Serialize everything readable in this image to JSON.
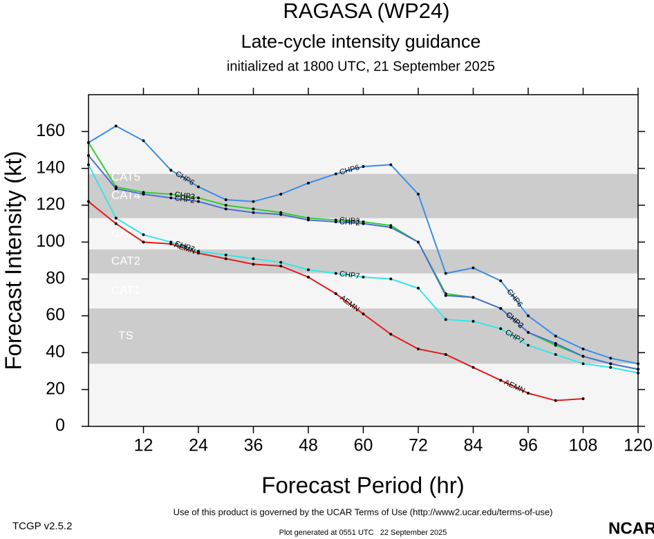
{
  "chart_data": {
    "type": "line",
    "title": "RAGASA (WP24)",
    "subtitle": "Late-cycle intensity guidance",
    "init_text": "initialized at 1800 UTC, 21 September 2025",
    "xlabel": "Forecast Period (hr)",
    "ylabel": "Forecast Intensity (kt)",
    "xlim": [
      0,
      120
    ],
    "ylim": [
      0,
      180
    ],
    "xticks": [
      12,
      24,
      36,
      48,
      60,
      72,
      84,
      96,
      108,
      120
    ],
    "yticks": [
      0,
      20,
      40,
      60,
      80,
      100,
      120,
      140,
      160
    ],
    "bands": [
      {
        "label": "TS",
        "from": 34,
        "to": 64,
        "shade": true
      },
      {
        "label": "CAT1",
        "from": 64,
        "to": 83,
        "shade": false
      },
      {
        "label": "CAT2",
        "from": 83,
        "to": 96,
        "shade": true
      },
      {
        "label": "CAT3",
        "from": 96,
        "to": 113,
        "shade": false
      },
      {
        "label": "CAT4",
        "from": 113,
        "to": 137,
        "shade": true
      },
      {
        "label": "CAT5",
        "from": 137,
        "to": 180,
        "shade": false
      }
    ],
    "x": [
      0,
      6,
      12,
      18,
      24,
      30,
      36,
      42,
      48,
      54,
      60,
      66,
      72,
      78,
      84,
      90,
      96,
      102,
      108,
      114,
      120
    ],
    "series": [
      {
        "name": "CHP6",
        "color": "#3a8ee6",
        "values": [
          154,
          163,
          155,
          139,
          130,
          123,
          122,
          126,
          132,
          137,
          141,
          142,
          126,
          83,
          86,
          79,
          60,
          49,
          42,
          37,
          34
        ]
      },
      {
        "name": "CHP3",
        "color": "#33cc33",
        "values": [
          154,
          130,
          127,
          126,
          124,
          120,
          118,
          116,
          113,
          112,
          111,
          109,
          100,
          72,
          70,
          64,
          51,
          44,
          38,
          34,
          31
        ]
      },
      {
        "name": "CHP2",
        "color": "#4a6fd8",
        "values": [
          147,
          129,
          126,
          124,
          122,
          118,
          116,
          115,
          112,
          111,
          110,
          108,
          100,
          71,
          70,
          64,
          51,
          45,
          38,
          34,
          31
        ]
      },
      {
        "name": "CHP7",
        "color": "#33e6e6",
        "values": [
          142,
          113,
          104,
          100,
          95,
          93,
          91,
          89,
          85,
          83,
          81,
          80,
          75,
          58,
          57,
          53,
          44,
          39,
          34,
          32,
          29
        ]
      },
      {
        "name": "AEMN",
        "color": "#e61a1a",
        "values": [
          122,
          110,
          100,
          99,
          94,
          91,
          88,
          87,
          81,
          72,
          61,
          50,
          42,
          39,
          32,
          25,
          18,
          14,
          15,
          null,
          null
        ]
      }
    ],
    "terms": "Use of this product is governed by the UCAR Terms of Use (http://www2.ucar.edu/terms-of-use)",
    "version": "TCGP v2.5.2",
    "generated": "Plot generated at 0551 UTC   22 September 2025",
    "logo": "NCAR"
  }
}
